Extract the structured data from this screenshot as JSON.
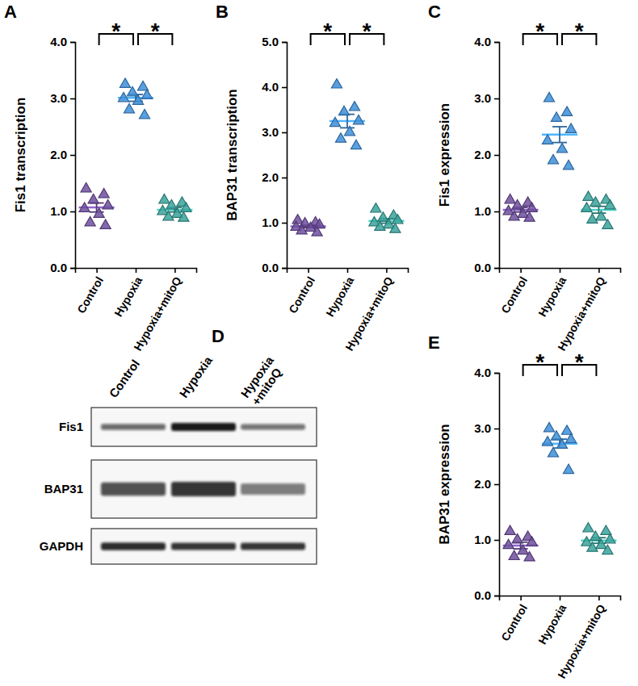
{
  "chart_data": [
    {
      "type": "scatter",
      "title": "A",
      "y_label": "Fis1 transcription",
      "categories": [
        "Control",
        "Hypoxia",
        "Hypoxia+mitoQ"
      ],
      "colors": [
        "#6f4f9e",
        "#3d8ed8",
        "#3aa39c"
      ],
      "marker": "triangle",
      "values": [
        [
          1.4,
          1.3,
          1.2,
          1.1,
          1.05,
          0.95,
          0.8,
          0.75
        ],
        [
          3.25,
          3.2,
          3.1,
          3.05,
          3.0,
          2.95,
          2.8,
          2.7
        ],
        [
          1.2,
          1.15,
          1.1,
          1.05,
          1.0,
          0.95,
          0.9,
          0.88
        ]
      ],
      "mean": [
        1.07,
        3.01,
        1.03
      ],
      "sem": [
        0.08,
        0.06,
        0.04
      ],
      "ylim": [
        0,
        4
      ],
      "yticks": [
        {
          "value": 0,
          "label": "0.0"
        },
        {
          "value": 1,
          "label": "1.0"
        },
        {
          "value": 2,
          "label": "2.0"
        },
        {
          "value": 3,
          "label": "3.0"
        },
        {
          "value": 4,
          "label": "4.0"
        }
      ],
      "annotations": [
        {
          "text": "*",
          "between": [
            "Control",
            "Hypoxia"
          ]
        },
        {
          "text": "*",
          "between": [
            "Hypoxia",
            "Hypoxia+mitoQ"
          ]
        }
      ]
    },
    {
      "type": "scatter",
      "title": "B",
      "y_label": "BAP31 transcription",
      "categories": [
        "Control",
        "Hypoxia",
        "Hypoxia+mitoQ"
      ],
      "colors": [
        "#6f4f9e",
        "#3d8ed8",
        "#3aa39c"
      ],
      "marker": "triangle",
      "values": [
        [
          1.05,
          1.0,
          0.98,
          0.95,
          0.9,
          0.88,
          0.82,
          0.78
        ],
        [
          4.05,
          3.55,
          3.45,
          3.25,
          3.2,
          3.0,
          2.85,
          2.7
        ],
        [
          1.3,
          1.15,
          1.1,
          1.05,
          1.0,
          0.95,
          0.9,
          0.85
        ]
      ],
      "mean": [
        0.92,
        3.25,
        1.04
      ],
      "sem": [
        0.03,
        0.15,
        0.05
      ],
      "ylim": [
        0,
        5
      ],
      "yticks": [
        {
          "value": 0,
          "label": "0.0"
        },
        {
          "value": 1,
          "label": "1.0"
        },
        {
          "value": 2,
          "label": "2.0"
        },
        {
          "value": 3,
          "label": "3.0"
        },
        {
          "value": 4,
          "label": "4.0"
        },
        {
          "value": 5,
          "label": "5.0"
        }
      ],
      "annotations": [
        {
          "text": "*",
          "between": [
            "Control",
            "Hypoxia"
          ]
        },
        {
          "text": "*",
          "between": [
            "Hypoxia",
            "Hypoxia+mitoQ"
          ]
        }
      ]
    },
    {
      "type": "scatter",
      "title": "C",
      "y_label": "Fis1 expression",
      "categories": [
        "Control",
        "Hypoxia",
        "Hypoxia+mitoQ"
      ],
      "colors": [
        "#6f4f9e",
        "#3d8ed8",
        "#3aa39c"
      ],
      "marker": "triangle",
      "values": [
        [
          1.2,
          1.15,
          1.1,
          1.05,
          1.0,
          0.95,
          0.9,
          0.88
        ],
        [
          3.0,
          2.75,
          2.65,
          2.45,
          2.25,
          2.1,
          1.9,
          1.8
        ],
        [
          1.25,
          1.2,
          1.15,
          1.1,
          1.05,
          0.9,
          0.85,
          0.75
        ]
      ],
      "mean": [
        1.03,
        2.36,
        1.03
      ],
      "sem": [
        0.04,
        0.14,
        0.06
      ],
      "ylim": [
        0,
        4
      ],
      "yticks": [
        {
          "value": 0,
          "label": "0.0"
        },
        {
          "value": 1,
          "label": "1.0"
        },
        {
          "value": 2,
          "label": "2.0"
        },
        {
          "value": 3,
          "label": "3.0"
        },
        {
          "value": 4,
          "label": "4.0"
        }
      ],
      "annotations": [
        {
          "text": "*",
          "between": [
            "Control",
            "Hypoxia"
          ]
        },
        {
          "text": "*",
          "between": [
            "Hypoxia",
            "Hypoxia+mitoQ"
          ]
        }
      ]
    },
    {
      "type": "scatter",
      "title": "E",
      "y_label": "BAP31 expression",
      "categories": [
        "Control",
        "Hypoxia",
        "Hypoxia+mitoQ"
      ],
      "colors": [
        "#6f4f9e",
        "#3d8ed8",
        "#3aa39c"
      ],
      "marker": "triangle",
      "values": [
        [
          1.15,
          1.05,
          1.0,
          0.95,
          0.9,
          0.8,
          0.7,
          0.68
        ],
        [
          3.0,
          2.95,
          2.85,
          2.8,
          2.75,
          2.7,
          2.55,
          2.25
        ],
        [
          1.2,
          1.15,
          1.05,
          1.0,
          0.95,
          0.9,
          0.85,
          0.8
        ]
      ],
      "mean": [
        0.9,
        2.73,
        0.99
      ],
      "sem": [
        0.06,
        0.08,
        0.05
      ],
      "ylim": [
        0,
        4
      ],
      "yticks": [
        {
          "value": 0,
          "label": "0.0"
        },
        {
          "value": 1,
          "label": "1.0"
        },
        {
          "value": 2,
          "label": "2.0"
        },
        {
          "value": 3,
          "label": "3.0"
        },
        {
          "value": 4,
          "label": "4.0"
        }
      ],
      "annotations": [
        {
          "text": "*",
          "between": [
            "Control",
            "Hypoxia"
          ]
        },
        {
          "text": "*",
          "between": [
            "Hypoxia",
            "Hypoxia+mitoQ"
          ]
        }
      ]
    }
  ],
  "western_blot": {
    "title": "D",
    "lanes": [
      [
        "Control"
      ],
      [
        "Hypoxia"
      ],
      [
        "Hypoxia",
        "+mitoQ"
      ]
    ],
    "rows": [
      {
        "label": "Fis1",
        "intensity": [
          0.55,
          1.0,
          0.5
        ]
      },
      {
        "label": "BAP31",
        "intensity": [
          0.7,
          0.85,
          0.45
        ]
      },
      {
        "label": "GAPDH",
        "intensity": [
          0.9,
          0.85,
          0.85
        ]
      }
    ]
  }
}
